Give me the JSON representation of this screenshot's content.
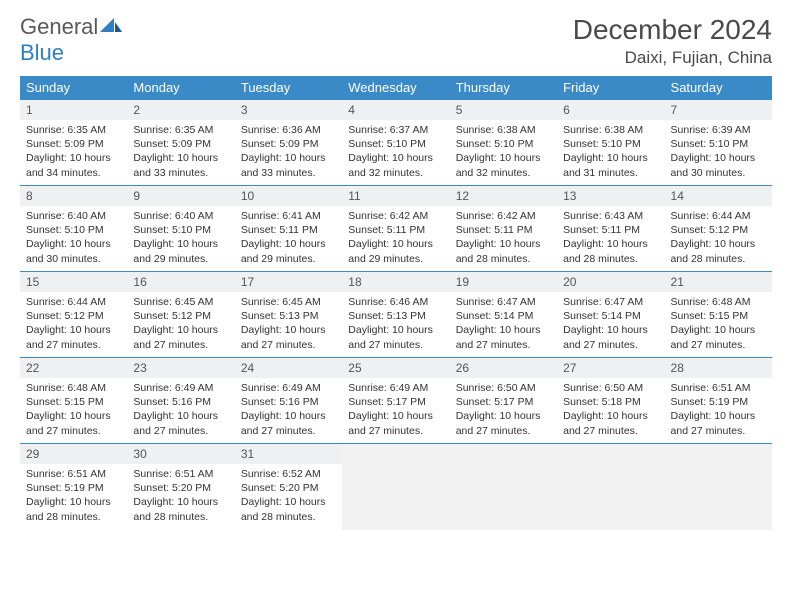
{
  "logo": {
    "text_general": "General",
    "text_blue": "Blue"
  },
  "title": "December 2024",
  "location": "Daixi, Fujian, China",
  "colors": {
    "header_bg": "#3a8ac8",
    "header_text": "#ffffff",
    "daynum_bg": "#eef0f1",
    "border": "#3a8ac8",
    "logo_gray": "#5a5a5a",
    "logo_blue": "#2d7fc1",
    "empty_bg": "#f2f2f2"
  },
  "weekdays": [
    "Sunday",
    "Monday",
    "Tuesday",
    "Wednesday",
    "Thursday",
    "Friday",
    "Saturday"
  ],
  "weeks": [
    [
      {
        "n": "1",
        "sunrise": "6:35 AM",
        "sunset": "5:09 PM",
        "dl": "10 hours and 34 minutes."
      },
      {
        "n": "2",
        "sunrise": "6:35 AM",
        "sunset": "5:09 PM",
        "dl": "10 hours and 33 minutes."
      },
      {
        "n": "3",
        "sunrise": "6:36 AM",
        "sunset": "5:09 PM",
        "dl": "10 hours and 33 minutes."
      },
      {
        "n": "4",
        "sunrise": "6:37 AM",
        "sunset": "5:10 PM",
        "dl": "10 hours and 32 minutes."
      },
      {
        "n": "5",
        "sunrise": "6:38 AM",
        "sunset": "5:10 PM",
        "dl": "10 hours and 32 minutes."
      },
      {
        "n": "6",
        "sunrise": "6:38 AM",
        "sunset": "5:10 PM",
        "dl": "10 hours and 31 minutes."
      },
      {
        "n": "7",
        "sunrise": "6:39 AM",
        "sunset": "5:10 PM",
        "dl": "10 hours and 30 minutes."
      }
    ],
    [
      {
        "n": "8",
        "sunrise": "6:40 AM",
        "sunset": "5:10 PM",
        "dl": "10 hours and 30 minutes."
      },
      {
        "n": "9",
        "sunrise": "6:40 AM",
        "sunset": "5:10 PM",
        "dl": "10 hours and 29 minutes."
      },
      {
        "n": "10",
        "sunrise": "6:41 AM",
        "sunset": "5:11 PM",
        "dl": "10 hours and 29 minutes."
      },
      {
        "n": "11",
        "sunrise": "6:42 AM",
        "sunset": "5:11 PM",
        "dl": "10 hours and 29 minutes."
      },
      {
        "n": "12",
        "sunrise": "6:42 AM",
        "sunset": "5:11 PM",
        "dl": "10 hours and 28 minutes."
      },
      {
        "n": "13",
        "sunrise": "6:43 AM",
        "sunset": "5:11 PM",
        "dl": "10 hours and 28 minutes."
      },
      {
        "n": "14",
        "sunrise": "6:44 AM",
        "sunset": "5:12 PM",
        "dl": "10 hours and 28 minutes."
      }
    ],
    [
      {
        "n": "15",
        "sunrise": "6:44 AM",
        "sunset": "5:12 PM",
        "dl": "10 hours and 27 minutes."
      },
      {
        "n": "16",
        "sunrise": "6:45 AM",
        "sunset": "5:12 PM",
        "dl": "10 hours and 27 minutes."
      },
      {
        "n": "17",
        "sunrise": "6:45 AM",
        "sunset": "5:13 PM",
        "dl": "10 hours and 27 minutes."
      },
      {
        "n": "18",
        "sunrise": "6:46 AM",
        "sunset": "5:13 PM",
        "dl": "10 hours and 27 minutes."
      },
      {
        "n": "19",
        "sunrise": "6:47 AM",
        "sunset": "5:14 PM",
        "dl": "10 hours and 27 minutes."
      },
      {
        "n": "20",
        "sunrise": "6:47 AM",
        "sunset": "5:14 PM",
        "dl": "10 hours and 27 minutes."
      },
      {
        "n": "21",
        "sunrise": "6:48 AM",
        "sunset": "5:15 PM",
        "dl": "10 hours and 27 minutes."
      }
    ],
    [
      {
        "n": "22",
        "sunrise": "6:48 AM",
        "sunset": "5:15 PM",
        "dl": "10 hours and 27 minutes."
      },
      {
        "n": "23",
        "sunrise": "6:49 AM",
        "sunset": "5:16 PM",
        "dl": "10 hours and 27 minutes."
      },
      {
        "n": "24",
        "sunrise": "6:49 AM",
        "sunset": "5:16 PM",
        "dl": "10 hours and 27 minutes."
      },
      {
        "n": "25",
        "sunrise": "6:49 AM",
        "sunset": "5:17 PM",
        "dl": "10 hours and 27 minutes."
      },
      {
        "n": "26",
        "sunrise": "6:50 AM",
        "sunset": "5:17 PM",
        "dl": "10 hours and 27 minutes."
      },
      {
        "n": "27",
        "sunrise": "6:50 AM",
        "sunset": "5:18 PM",
        "dl": "10 hours and 27 minutes."
      },
      {
        "n": "28",
        "sunrise": "6:51 AM",
        "sunset": "5:19 PM",
        "dl": "10 hours and 27 minutes."
      }
    ],
    [
      {
        "n": "29",
        "sunrise": "6:51 AM",
        "sunset": "5:19 PM",
        "dl": "10 hours and 28 minutes."
      },
      {
        "n": "30",
        "sunrise": "6:51 AM",
        "sunset": "5:20 PM",
        "dl": "10 hours and 28 minutes."
      },
      {
        "n": "31",
        "sunrise": "6:52 AM",
        "sunset": "5:20 PM",
        "dl": "10 hours and 28 minutes."
      },
      null,
      null,
      null,
      null
    ]
  ],
  "labels": {
    "sunrise": "Sunrise: ",
    "sunset": "Sunset: ",
    "daylight": "Daylight: "
  }
}
